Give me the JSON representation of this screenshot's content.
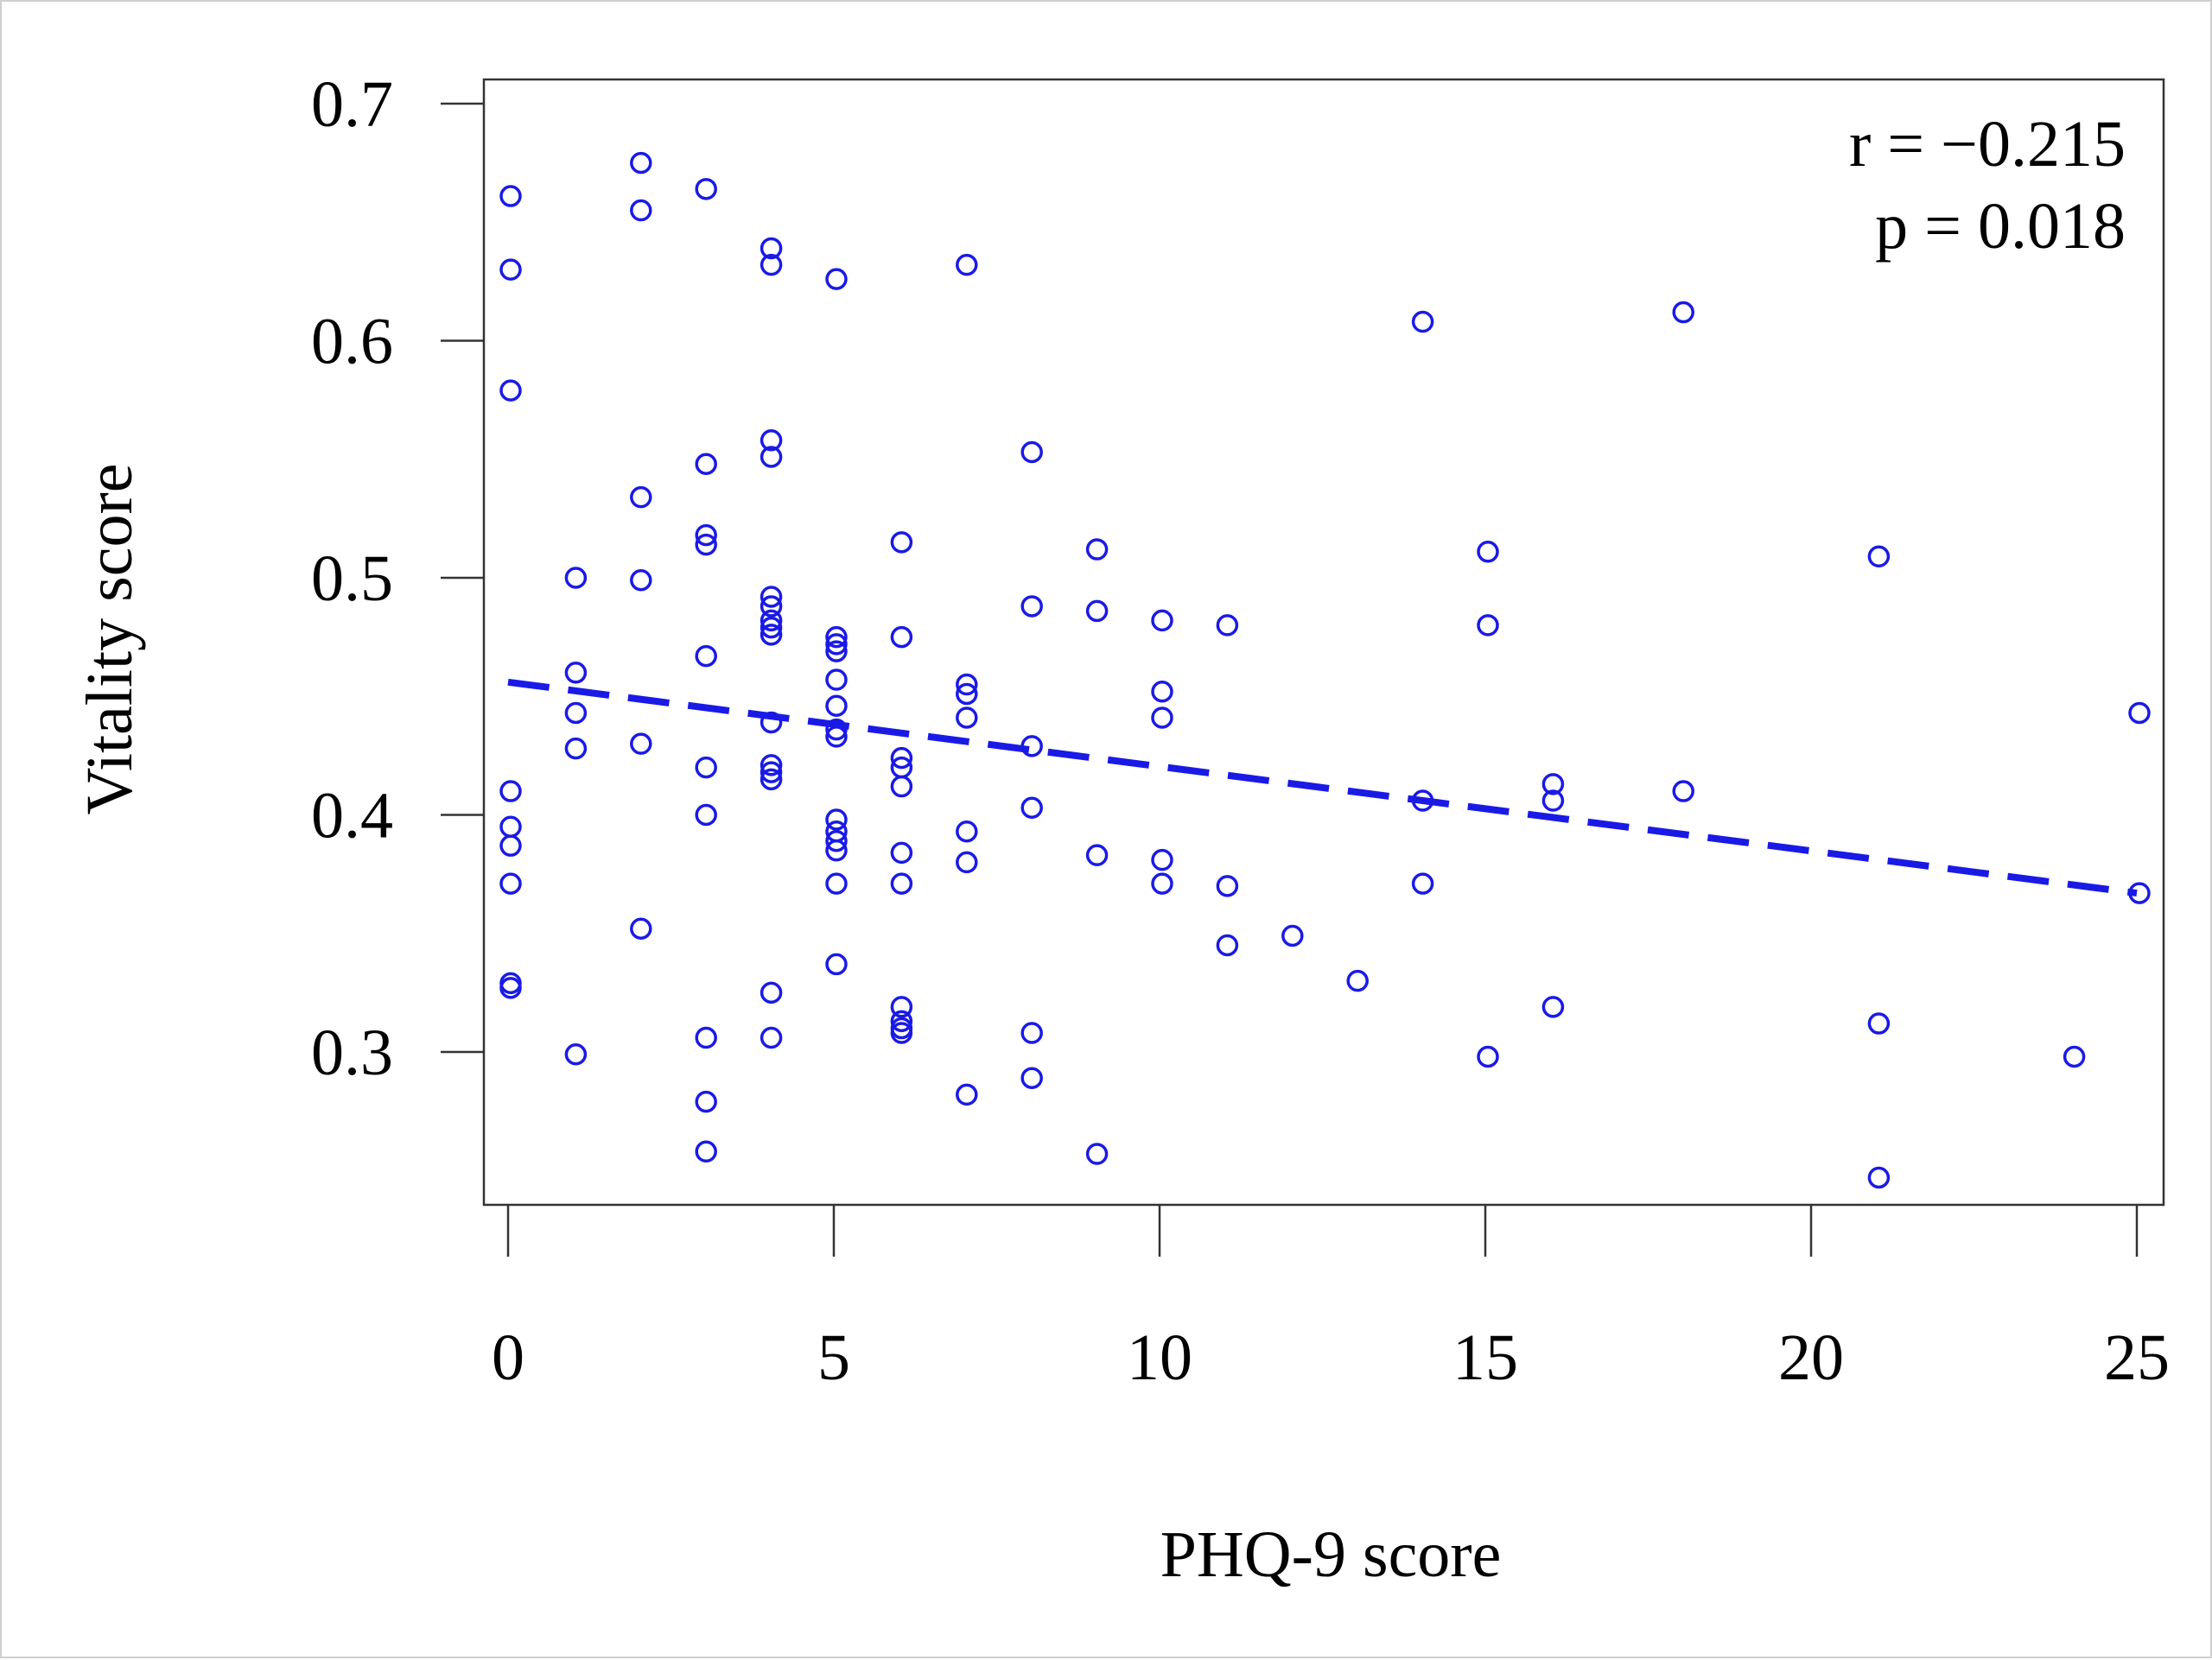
{
  "chart_data": {
    "type": "scatter",
    "xlabel": "PHQ-9 score",
    "ylabel": "Vitality score",
    "xlim": [
      0,
      25
    ],
    "ylim": [
      0.24,
      0.71
    ],
    "xticks": [
      "0",
      "5",
      "10",
      "15",
      "20",
      "25"
    ],
    "yticks": [
      "0.3",
      "0.4",
      "0.5",
      "0.6",
      "0.7"
    ],
    "grid": false,
    "annotations": [
      "r = −0.215",
      "p = 0.018"
    ],
    "colors": {
      "points": "#1a1ae6",
      "regression_line": "#1a1ae6"
    },
    "regression_line": {
      "style": "dashed",
      "x": [
        0,
        25
      ],
      "y": [
        0.456,
        0.367
      ]
    },
    "points": [
      {
        "x": 0,
        "y": 0.661
      },
      {
        "x": 0,
        "y": 0.63
      },
      {
        "x": 0,
        "y": 0.579
      },
      {
        "x": 0,
        "y": 0.41
      },
      {
        "x": 0,
        "y": 0.395
      },
      {
        "x": 0,
        "y": 0.387
      },
      {
        "x": 0,
        "y": 0.371
      },
      {
        "x": 0,
        "y": 0.329
      },
      {
        "x": 0,
        "y": 0.327
      },
      {
        "x": 1,
        "y": 0.5
      },
      {
        "x": 1,
        "y": 0.46
      },
      {
        "x": 1,
        "y": 0.443
      },
      {
        "x": 1,
        "y": 0.428
      },
      {
        "x": 1,
        "y": 0.299
      },
      {
        "x": 2,
        "y": 0.675
      },
      {
        "x": 2,
        "y": 0.655
      },
      {
        "x": 2,
        "y": 0.534
      },
      {
        "x": 2,
        "y": 0.499
      },
      {
        "x": 2,
        "y": 0.43
      },
      {
        "x": 2,
        "y": 0.352
      },
      {
        "x": 3,
        "y": 0.664
      },
      {
        "x": 3,
        "y": 0.548
      },
      {
        "x": 3,
        "y": 0.518
      },
      {
        "x": 3,
        "y": 0.514
      },
      {
        "x": 3,
        "y": 0.467
      },
      {
        "x": 3,
        "y": 0.42
      },
      {
        "x": 3,
        "y": 0.4
      },
      {
        "x": 3,
        "y": 0.306
      },
      {
        "x": 3,
        "y": 0.279
      },
      {
        "x": 3,
        "y": 0.258
      },
      {
        "x": 4,
        "y": 0.639
      },
      {
        "x": 4,
        "y": 0.632
      },
      {
        "x": 4,
        "y": 0.558
      },
      {
        "x": 4,
        "y": 0.551
      },
      {
        "x": 4,
        "y": 0.492
      },
      {
        "x": 4,
        "y": 0.488
      },
      {
        "x": 4,
        "y": 0.482
      },
      {
        "x": 4,
        "y": 0.479
      },
      {
        "x": 4,
        "y": 0.476
      },
      {
        "x": 4,
        "y": 0.439
      },
      {
        "x": 4,
        "y": 0.421
      },
      {
        "x": 4,
        "y": 0.418
      },
      {
        "x": 4,
        "y": 0.415
      },
      {
        "x": 4,
        "y": 0.325
      },
      {
        "x": 4,
        "y": 0.306
      },
      {
        "x": 5,
        "y": 0.626
      },
      {
        "x": 5,
        "y": 0.475
      },
      {
        "x": 5,
        "y": 0.472
      },
      {
        "x": 5,
        "y": 0.469
      },
      {
        "x": 5,
        "y": 0.457
      },
      {
        "x": 5,
        "y": 0.446
      },
      {
        "x": 5,
        "y": 0.436
      },
      {
        "x": 5,
        "y": 0.433
      },
      {
        "x": 5,
        "y": 0.398
      },
      {
        "x": 5,
        "y": 0.393
      },
      {
        "x": 5,
        "y": 0.389
      },
      {
        "x": 5,
        "y": 0.385
      },
      {
        "x": 5,
        "y": 0.371
      },
      {
        "x": 5,
        "y": 0.337
      },
      {
        "x": 6,
        "y": 0.515
      },
      {
        "x": 6,
        "y": 0.475
      },
      {
        "x": 6,
        "y": 0.424
      },
      {
        "x": 6,
        "y": 0.42
      },
      {
        "x": 6,
        "y": 0.412
      },
      {
        "x": 6,
        "y": 0.384
      },
      {
        "x": 6,
        "y": 0.371
      },
      {
        "x": 6,
        "y": 0.319
      },
      {
        "x": 6,
        "y": 0.313
      },
      {
        "x": 6,
        "y": 0.31
      },
      {
        "x": 6,
        "y": 0.308
      },
      {
        "x": 7,
        "y": 0.632
      },
      {
        "x": 7,
        "y": 0.455
      },
      {
        "x": 7,
        "y": 0.451
      },
      {
        "x": 7,
        "y": 0.441
      },
      {
        "x": 7,
        "y": 0.393
      },
      {
        "x": 7,
        "y": 0.38
      },
      {
        "x": 7,
        "y": 0.282
      },
      {
        "x": 8,
        "y": 0.553
      },
      {
        "x": 8,
        "y": 0.488
      },
      {
        "x": 8,
        "y": 0.429
      },
      {
        "x": 8,
        "y": 0.403
      },
      {
        "x": 8,
        "y": 0.308
      },
      {
        "x": 8,
        "y": 0.289
      },
      {
        "x": 9,
        "y": 0.512
      },
      {
        "x": 9,
        "y": 0.486
      },
      {
        "x": 9,
        "y": 0.383
      },
      {
        "x": 9,
        "y": 0.257
      },
      {
        "x": 10,
        "y": 0.482
      },
      {
        "x": 10,
        "y": 0.452
      },
      {
        "x": 10,
        "y": 0.441
      },
      {
        "x": 10,
        "y": 0.381
      },
      {
        "x": 10,
        "y": 0.371
      },
      {
        "x": 11,
        "y": 0.48
      },
      {
        "x": 11,
        "y": 0.37
      },
      {
        "x": 11,
        "y": 0.345
      },
      {
        "x": 12,
        "y": 0.349
      },
      {
        "x": 13,
        "y": 0.33
      },
      {
        "x": 14,
        "y": 0.608
      },
      {
        "x": 14,
        "y": 0.406
      },
      {
        "x": 14,
        "y": 0.371
      },
      {
        "x": 15,
        "y": 0.511
      },
      {
        "x": 15,
        "y": 0.48
      },
      {
        "x": 15,
        "y": 0.298
      },
      {
        "x": 16,
        "y": 0.413
      },
      {
        "x": 16,
        "y": 0.406
      },
      {
        "x": 16,
        "y": 0.319
      },
      {
        "x": 18,
        "y": 0.612
      },
      {
        "x": 18,
        "y": 0.41
      },
      {
        "x": 21,
        "y": 0.509
      },
      {
        "x": 21,
        "y": 0.312
      },
      {
        "x": 21,
        "y": 0.247
      },
      {
        "x": 24,
        "y": 0.298
      },
      {
        "x": 25,
        "y": 0.443
      },
      {
        "x": 25,
        "y": 0.367
      }
    ]
  }
}
